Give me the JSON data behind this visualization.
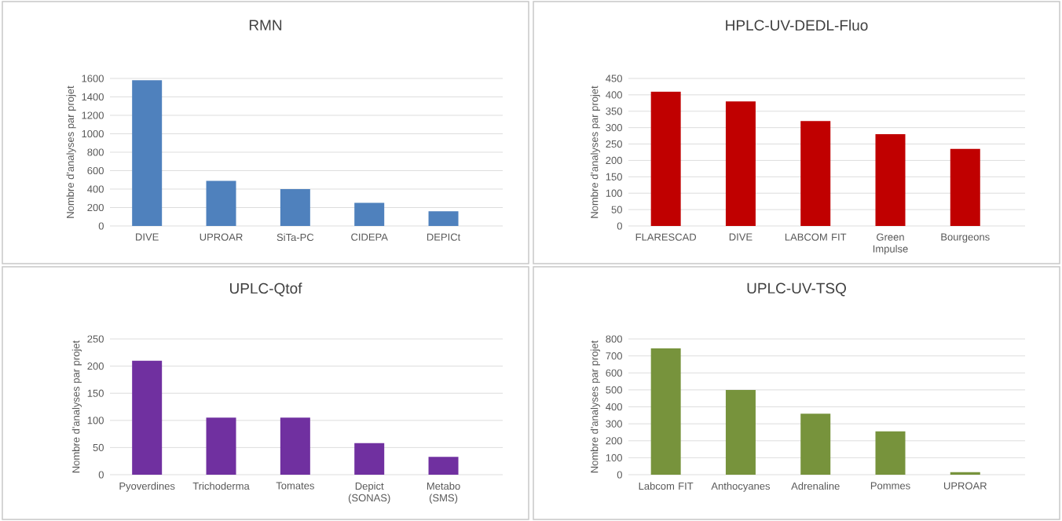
{
  "chart_data": [
    {
      "type": "bar",
      "title": "RMN",
      "ylabel": "Nombre d'analyses par projet",
      "categories": [
        "DIVE",
        "UPROAR",
        "SiTa-PC",
        "CIDEPA",
        "DEPICt"
      ],
      "values": [
        1580,
        490,
        400,
        250,
        160
      ],
      "color": "#4f81bd",
      "ylim": [
        0,
        1600
      ],
      "yticks": [
        0,
        200,
        400,
        600,
        800,
        1000,
        1200,
        1400,
        1600
      ],
      "grid": "y"
    },
    {
      "type": "bar",
      "title": "HPLC-UV-DEDL-Fluo",
      "ylabel": "Nombre d'analyses par projet",
      "categories": [
        "FLARESCAD",
        "DIVE",
        "LABCOM FIT",
        "Green Impulse",
        "Bourgeons"
      ],
      "values": [
        410,
        380,
        320,
        280,
        235
      ],
      "color": "#c00000",
      "ylim": [
        0,
        450
      ],
      "yticks": [
        0,
        50,
        100,
        150,
        200,
        250,
        300,
        350,
        400,
        450
      ],
      "grid": "y"
    },
    {
      "type": "bar",
      "title": "UPLC-Qtof",
      "ylabel": "Nombre d'analyses par projet",
      "categories": [
        "Pyoverdines",
        "Trichoderma",
        "Tomates",
        "Depict (SONAS)",
        "Metabo (SMS)"
      ],
      "values": [
        210,
        105,
        105,
        58,
        33
      ],
      "color": "#7030a0",
      "ylim": [
        0,
        250
      ],
      "yticks": [
        0,
        50,
        100,
        150,
        200,
        250
      ],
      "grid": "y"
    },
    {
      "type": "bar",
      "title": "UPLC-UV-TSQ",
      "ylabel": "Nombre d'analyses par projet",
      "categories": [
        "Labcom FIT",
        "Anthocyanes",
        "Adrenaline",
        "Pommes",
        "UPROAR"
      ],
      "values": [
        745,
        500,
        360,
        255,
        15
      ],
      "color": "#77933c",
      "ylim": [
        0,
        800
      ],
      "yticks": [
        0,
        100,
        200,
        300,
        400,
        500,
        600,
        700,
        800
      ],
      "grid": "y"
    }
  ]
}
